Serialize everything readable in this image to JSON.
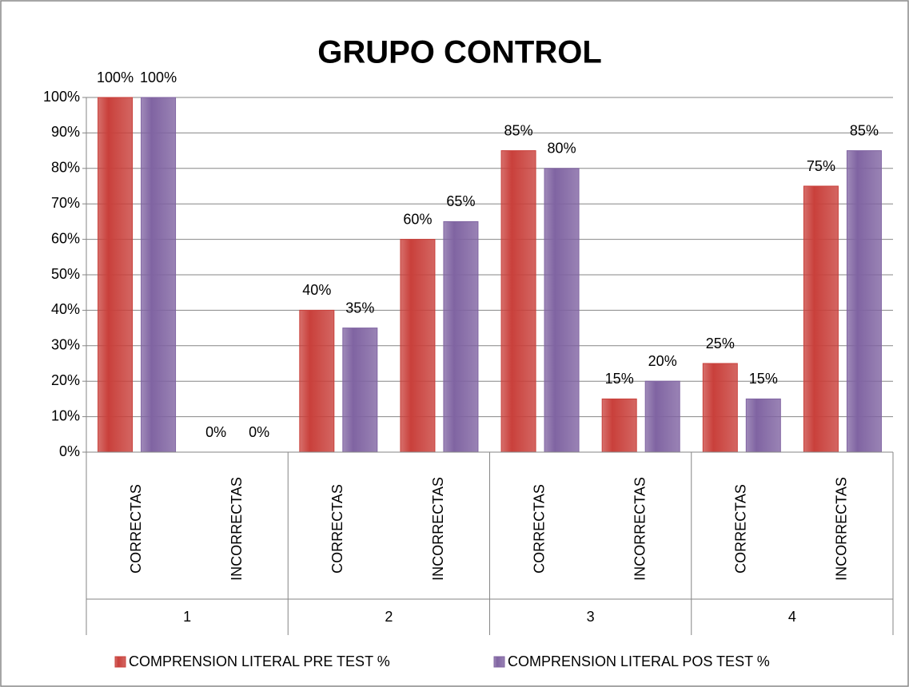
{
  "chart_data": {
    "type": "bar",
    "title": "GRUPO CONTROL",
    "groups": [
      "1",
      "2",
      "3",
      "4"
    ],
    "categories": [
      "CORRECTAS",
      "INCORRECTAS",
      "CORRECTAS",
      "INCORRECTAS",
      "CORRECTAS",
      "INCORRECTAS",
      "CORRECTAS",
      "INCORRECTAS"
    ],
    "series": [
      {
        "name": "COMPRENSION LITERAL PRE TEST %",
        "color": "#c9403b",
        "values": [
          100,
          0,
          40,
          60,
          85,
          15,
          25,
          75
        ],
        "value_labels": [
          "100%",
          "0%",
          "40%",
          "60%",
          "85%",
          "15%",
          "25%",
          "75%"
        ]
      },
      {
        "name": "COMPRENSION LITERAL POS TEST %",
        "color": "#8064a2",
        "values": [
          100,
          0,
          35,
          65,
          80,
          20,
          15,
          85
        ],
        "value_labels": [
          "100%",
          "0%",
          "35%",
          "65%",
          "80%",
          "20%",
          "15%",
          "85%"
        ]
      }
    ],
    "ylim": [
      0,
      100
    ],
    "yticks": [
      {
        "value": 0,
        "label": "0%"
      },
      {
        "value": 10,
        "label": "10%"
      },
      {
        "value": 20,
        "label": "20%"
      },
      {
        "value": 30,
        "label": "30%"
      },
      {
        "value": 40,
        "label": "40%"
      },
      {
        "value": 50,
        "label": "50%"
      },
      {
        "value": 60,
        "label": "60%"
      },
      {
        "value": 70,
        "label": "70%"
      },
      {
        "value": 80,
        "label": "80%"
      },
      {
        "value": 90,
        "label": "90%"
      },
      {
        "value": 100,
        "label": "100%"
      }
    ],
    "grid": true,
    "legend": "bottom"
  }
}
